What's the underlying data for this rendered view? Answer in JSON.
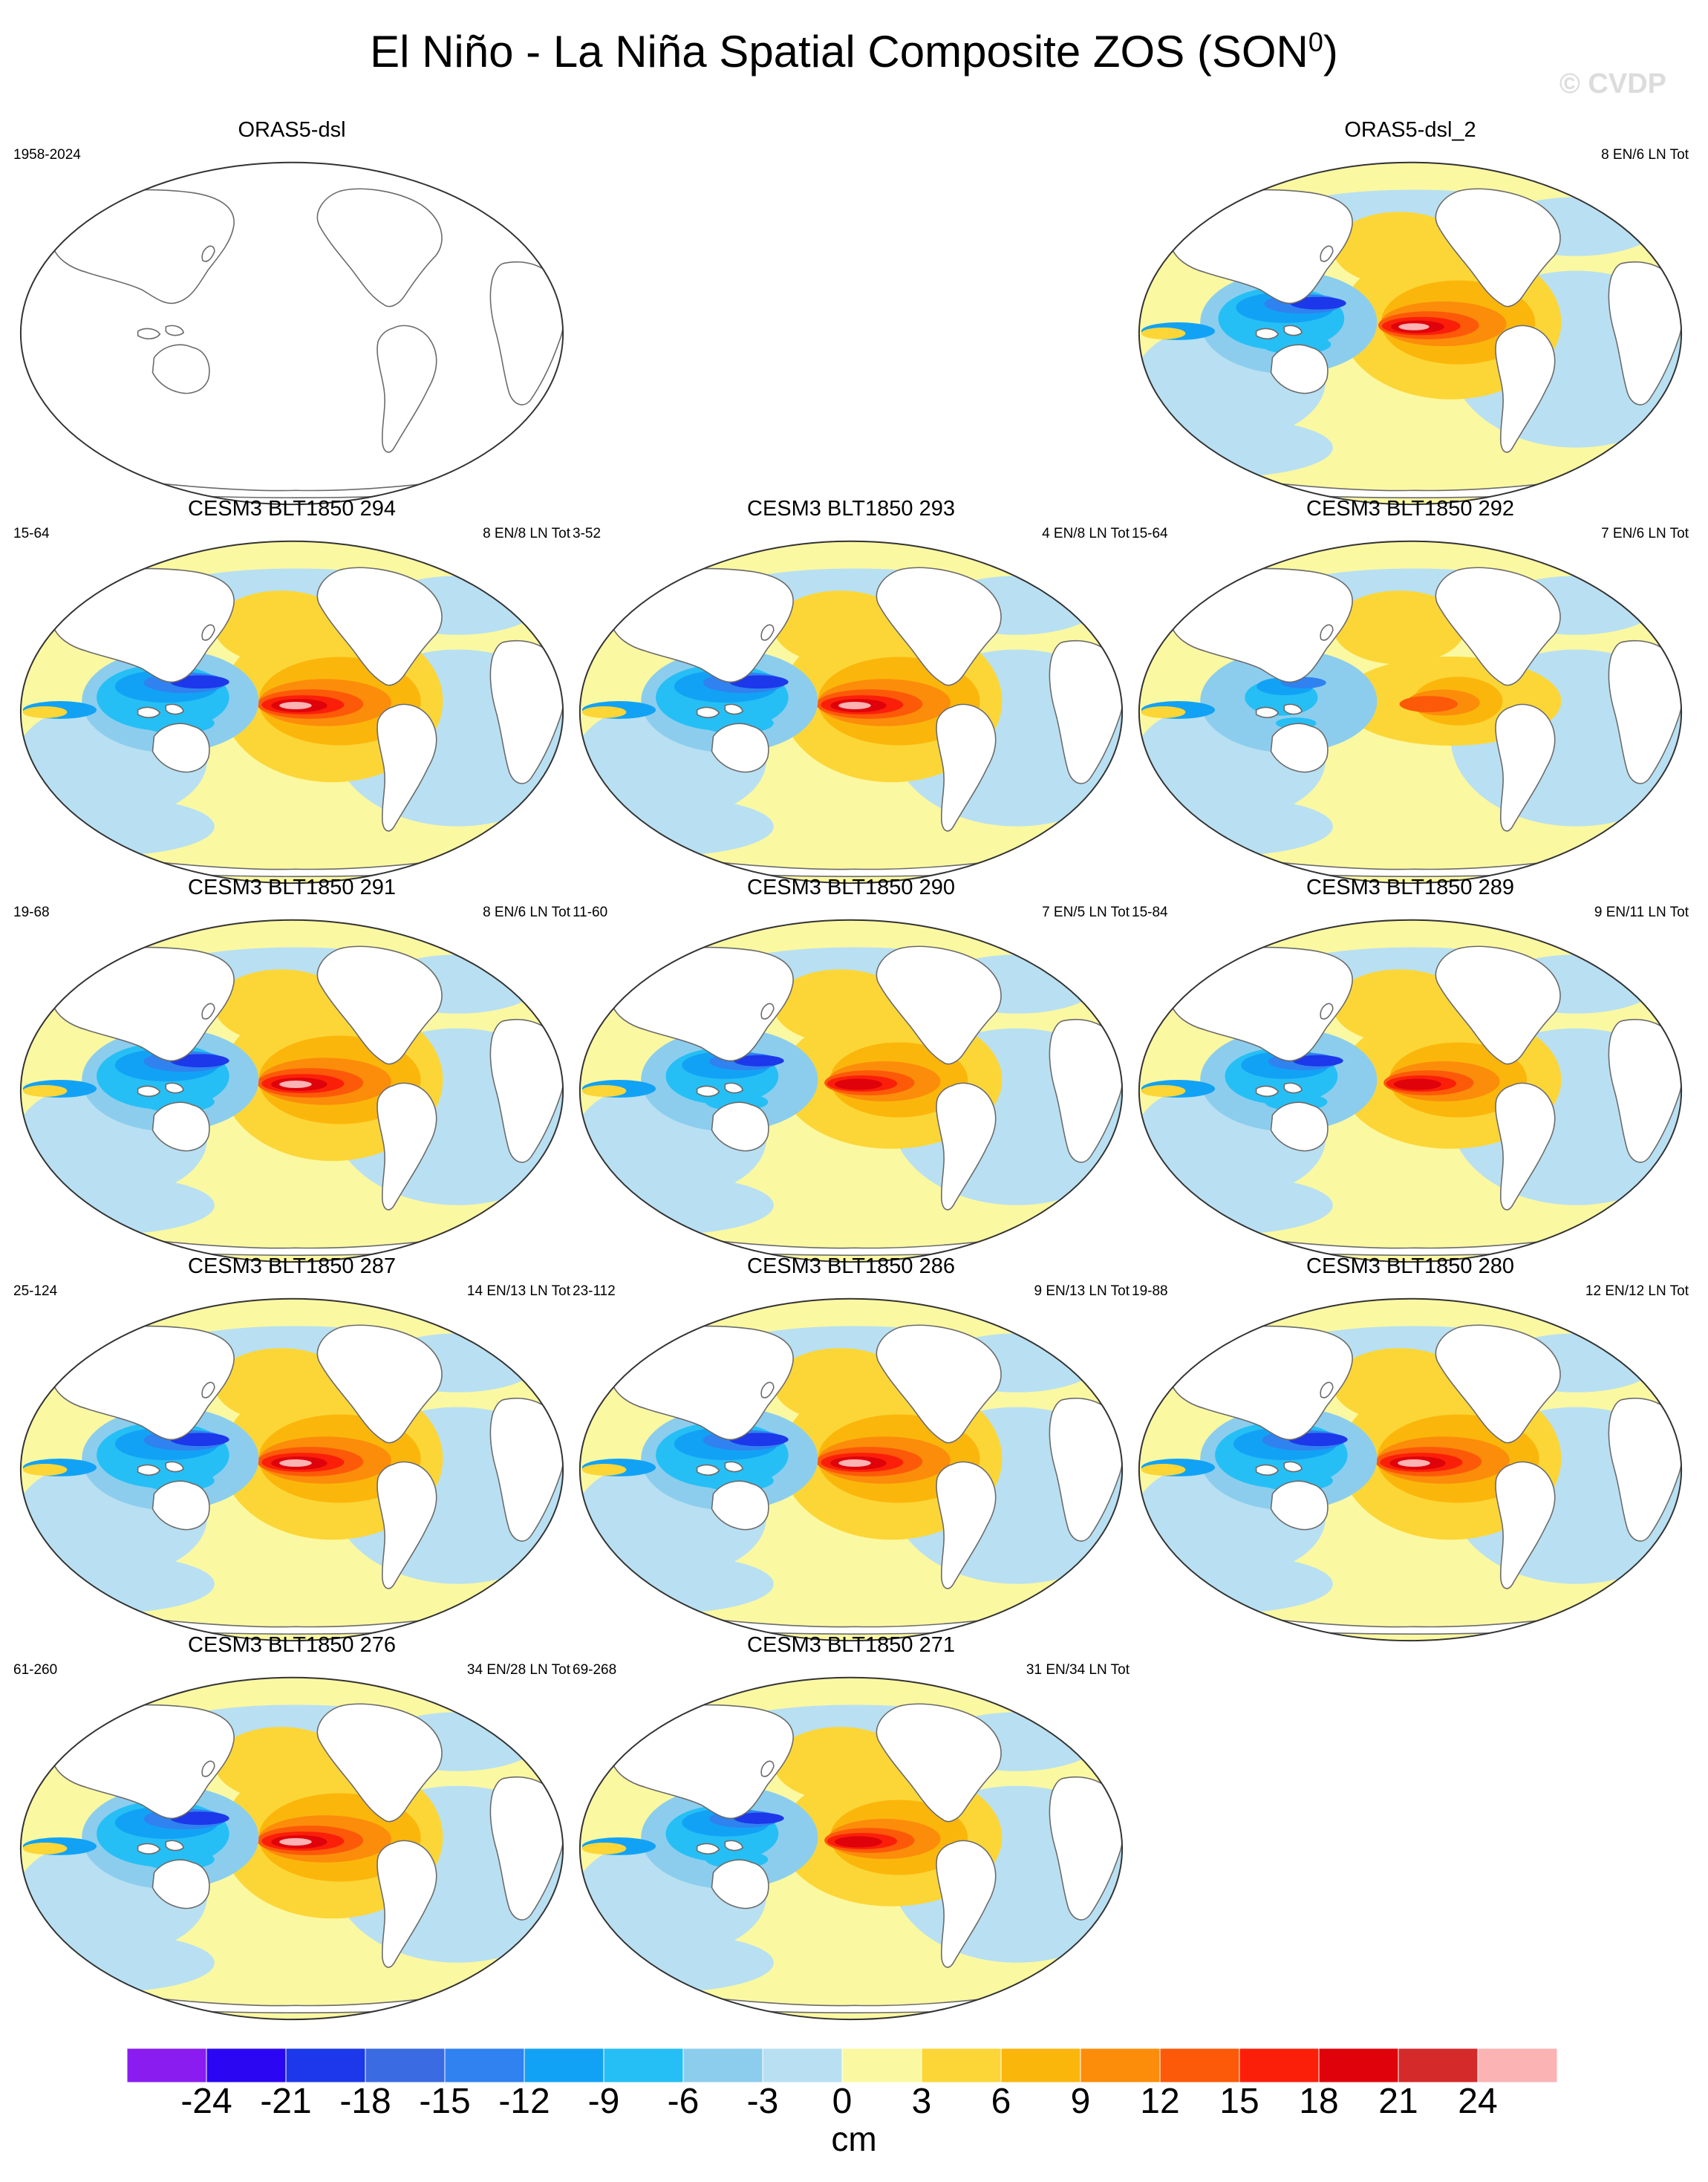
{
  "title": {
    "main": "El Niño - La Niña Spatial Composite ZOS (SON",
    "superscript": "0",
    "close": ")"
  },
  "watermark": "© CVDP",
  "panels": [
    {
      "title": "ORAS5-dsl",
      "left_label": "1958-2024",
      "right_label": "",
      "field": "none"
    },
    {
      "title": "ORAS5-dsl_2",
      "left_label": "",
      "right_label": "8 EN/6 LN Tot",
      "field": "obs"
    },
    {
      "title": "CESM3 BLT1850 294",
      "left_label": "15-64",
      "right_label": "8 EN/8 LN Tot",
      "field": "strong"
    },
    {
      "title": "CESM3 BLT1850 293",
      "left_label": "3-52",
      "right_label": "4 EN/8 LN Tot",
      "field": "strong"
    },
    {
      "title": "CESM3 BLT1850 292",
      "left_label": "15-64",
      "right_label": "7 EN/6 LN Tot",
      "field": "weak"
    },
    {
      "title": "CESM3 BLT1850 291",
      "left_label": "19-68",
      "right_label": "8 EN/6 LN Tot",
      "field": "strong"
    },
    {
      "title": "CESM3 BLT1850 290",
      "left_label": "11-60",
      "right_label": "7 EN/5 LN Tot",
      "field": "medium"
    },
    {
      "title": "CESM3 BLT1850 289",
      "left_label": "15-84",
      "right_label": "9 EN/11 LN Tot",
      "field": "medium"
    },
    {
      "title": "CESM3 BLT1850 287",
      "left_label": "25-124",
      "right_label": "14 EN/13 LN Tot",
      "field": "strong"
    },
    {
      "title": "CESM3 BLT1850 286",
      "left_label": "23-112",
      "right_label": "9 EN/13 LN Tot",
      "field": "strong"
    },
    {
      "title": "CESM3 BLT1850 280",
      "left_label": "19-88",
      "right_label": "12 EN/12 LN Tot",
      "field": "strong"
    },
    {
      "title": "CESM3 BLT1850 276",
      "left_label": "61-260",
      "right_label": "34 EN/28 LN Tot",
      "field": "strong"
    },
    {
      "title": "CESM3 BLT1850 271",
      "left_label": "69-268",
      "right_label": "31 EN/34 LN Tot",
      "field": "medium"
    }
  ],
  "colorbar": {
    "colors": [
      "#8a1cf0",
      "#2a06f2",
      "#1c38ea",
      "#3a6be2",
      "#2f82f0",
      "#12a2f5",
      "#25bff5",
      "#8ccdee",
      "#b8e0f2",
      "#fbf8a2",
      "#fcd637",
      "#fbb60c",
      "#fb8d0a",
      "#fc5a08",
      "#fb1f0a",
      "#df020a",
      "#d42a2a",
      "#fbb3b4"
    ],
    "tick_labels": [
      "-24",
      "-21",
      "-18",
      "-15",
      "-12",
      "-9",
      "-6",
      "-3",
      "0",
      "3",
      "6",
      "9",
      "12",
      "15",
      "18",
      "21",
      "24"
    ],
    "unit": "cm"
  }
}
